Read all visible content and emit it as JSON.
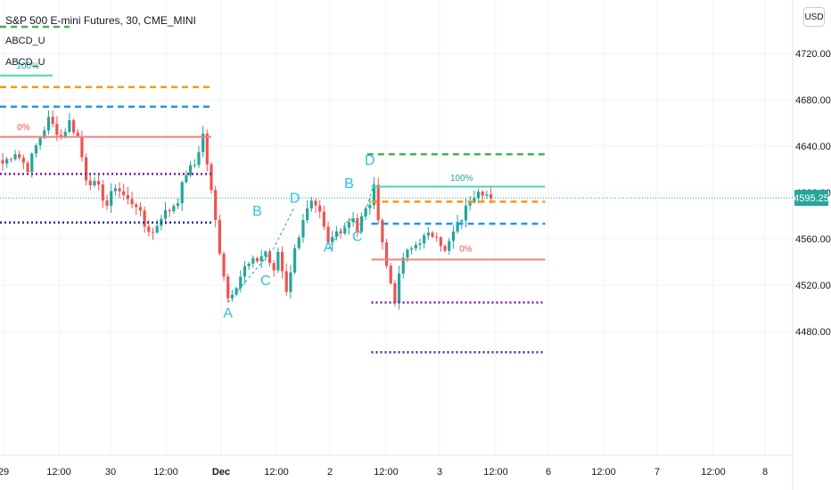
{
  "header": {
    "symbol_title": "S&P 500 E-mini Futures, 30, CME_MINI",
    "indicator_1": "ABCD_U",
    "indicator_2": "ABCD_U",
    "currency_button": "USD"
  },
  "colors": {
    "up": "#26a69a",
    "down": "#ef5350",
    "green_dash": "#4caf50",
    "orange_dash": "#ff9800",
    "blue_dash": "#2196f3",
    "mint_line": "#4dd9a0",
    "red_line": "#f08080",
    "purple_dot": "#7b1fa2",
    "navy_dot": "#283593",
    "pattern_label": "#26c6da",
    "price_badge": "#26a69a"
  },
  "chart_data": {
    "type": "candlestick",
    "title": "S&P 500 E-mini Futures, 30, CME_MINI",
    "y_axis": {
      "ticks": [
        "4720.00",
        "4680.00",
        "4640.00",
        "4600.00",
        "4560.00",
        "4520.00",
        "4480.00"
      ],
      "range": [
        4462,
        4742
      ]
    },
    "x_axis": {
      "ticks": [
        "29",
        "12:00",
        "30",
        "12:00",
        "Dec",
        "12:00",
        "2",
        "12:00",
        "3",
        "12:00",
        "6",
        "12:00",
        "7",
        "12:00",
        "8"
      ]
    },
    "last_price": "4595.25",
    "price_path": [
      [
        0,
        4625
      ],
      [
        3,
        4635
      ],
      [
        6,
        4621
      ],
      [
        8,
        4640
      ],
      [
        11,
        4663
      ],
      [
        14,
        4648
      ],
      [
        16,
        4661
      ],
      [
        18,
        4648
      ],
      [
        20,
        4613
      ],
      [
        23,
        4603
      ],
      [
        25,
        4589
      ],
      [
        27,
        4606
      ],
      [
        30,
        4593
      ],
      [
        32,
        4590
      ],
      [
        34,
        4571
      ],
      [
        36,
        4565
      ],
      [
        38,
        4580
      ],
      [
        40,
        4585
      ],
      [
        42,
        4594
      ],
      [
        44,
        4617
      ],
      [
        46,
        4624
      ],
      [
        48,
        4650
      ],
      [
        50,
        4600
      ],
      [
        52,
        4550
      ],
      [
        54,
        4509
      ],
      [
        56,
        4521
      ],
      [
        58,
        4535
      ],
      [
        61,
        4542
      ],
      [
        63,
        4549
      ],
      [
        65,
        4530
      ],
      [
        66,
        4549
      ],
      [
        68,
        4516
      ],
      [
        70,
        4550
      ],
      [
        72,
        4578
      ],
      [
        74,
        4590
      ],
      [
        76,
        4580
      ],
      [
        78,
        4555
      ],
      [
        80,
        4566
      ],
      [
        82,
        4571
      ],
      [
        84,
        4580
      ],
      [
        85,
        4567
      ],
      [
        86,
        4578
      ],
      [
        88,
        4591
      ],
      [
        89,
        4603
      ],
      [
        90,
        4580
      ],
      [
        92,
        4536
      ],
      [
        94,
        4508
      ],
      [
        96,
        4544
      ],
      [
        98,
        4551
      ],
      [
        100,
        4559
      ],
      [
        102,
        4562
      ],
      [
        104,
        4565
      ],
      [
        106,
        4548
      ],
      [
        108,
        4565
      ],
      [
        110,
        4578
      ],
      [
        112,
        4594
      ],
      [
        114,
        4604
      ],
      [
        116,
        4598
      ],
      [
        117,
        4595
      ]
    ],
    "pattern_labels": [
      {
        "text": "A",
        "price": 4492,
        "candle": 54
      },
      {
        "text": "B",
        "price": 4580,
        "candle": 61
      },
      {
        "text": "C",
        "price": 4520,
        "candle": 63
      },
      {
        "text": "D",
        "price": 4591,
        "candle": 70
      },
      {
        "text": "A",
        "price": 4549,
        "candle": 78
      },
      {
        "text": "B",
        "price": 4604,
        "candle": 83
      },
      {
        "text": "C",
        "price": 4558,
        "candle": 85
      },
      {
        "text": "D",
        "price": 4624,
        "candle": 88
      }
    ],
    "abcd_guides": [
      [
        [
          54,
          4505
        ],
        [
          65,
          4552
        ],
        [
          70,
          4588
        ]
      ],
      [
        [
          78,
          4551
        ],
        [
          83,
          4577
        ],
        [
          86,
          4572
        ],
        [
          89,
          4608
        ]
      ]
    ],
    "levels": [
      {
        "price": 4743,
        "style": "dash",
        "color": "#4caf50",
        "from": 0,
        "to": 16
      },
      {
        "price": 4701,
        "style": "solid",
        "color": "#4dd9a0",
        "from": 0,
        "to": 12
      },
      {
        "price": 4691,
        "style": "dash",
        "color": "#ff9800",
        "from": 0,
        "to": 50
      },
      {
        "price": 4674,
        "style": "dash",
        "color": "#2196f3",
        "from": 0,
        "to": 50
      },
      {
        "price": 4648,
        "style": "solid",
        "color": "#f08080",
        "from": 0,
        "to": 50
      },
      {
        "price": 4616,
        "style": "dot",
        "color": "#7b1fa2",
        "from": 0,
        "to": 50
      },
      {
        "price": 4574,
        "style": "dot",
        "color": "#283593",
        "from": 0,
        "to": 50
      },
      {
        "price": 4633,
        "style": "dash",
        "color": "#4caf50",
        "from": 88,
        "to": 130
      },
      {
        "price": 4605,
        "style": "solid",
        "color": "#4dd9a0",
        "from": 89,
        "to": 130
      },
      {
        "price": 4592,
        "style": "dash",
        "color": "#ff9800",
        "from": 89,
        "to": 130
      },
      {
        "price": 4573,
        "style": "dash",
        "color": "#2196f3",
        "from": 89,
        "to": 130
      },
      {
        "price": 4542,
        "style": "solid",
        "color": "#f08080",
        "from": 89,
        "to": 130
      },
      {
        "price": 4505,
        "style": "dot",
        "color": "#7b1fa2",
        "from": 89,
        "to": 130
      },
      {
        "price": 4462,
        "style": "dot",
        "color": "#283593",
        "from": 89,
        "to": 130
      }
    ],
    "level_labels": [
      {
        "text": "100%",
        "price": 4707,
        "candle": 6,
        "color": "#26a69a"
      },
      {
        "text": "0%",
        "price": 4654,
        "candle": 5,
        "color": "#ef5350"
      },
      {
        "text": "100%",
        "price": 4610,
        "candle": 110,
        "color": "#26a69a"
      },
      {
        "text": "0%",
        "price": 4549,
        "candle": 111,
        "color": "#ef5350"
      }
    ]
  }
}
